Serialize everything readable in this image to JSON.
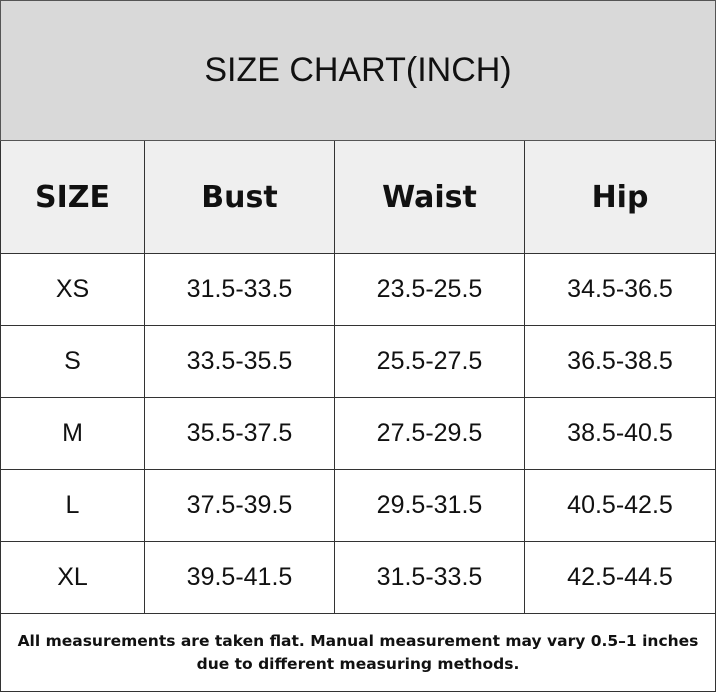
{
  "header": {
    "title": "SIZE CHART(INCH)"
  },
  "table": {
    "columns": [
      "SIZE",
      "Bust",
      "Waist",
      "Hip"
    ],
    "rows": [
      [
        "XS",
        "31.5-33.5",
        "23.5-25.5",
        "34.5-36.5"
      ],
      [
        "S",
        "33.5-35.5",
        "25.5-27.5",
        "36.5-38.5"
      ],
      [
        "M",
        "35.5-37.5",
        "27.5-29.5",
        "38.5-40.5"
      ],
      [
        "L",
        "37.5-39.5",
        "29.5-31.5",
        "40.5-42.5"
      ],
      [
        "XL",
        "39.5-41.5",
        "31.5-33.5",
        "42.5-44.5"
      ]
    ]
  },
  "footer": {
    "note": "All measurements are taken flat. Manual measurement may vary 0.5–1 inches due to different measuring methods."
  }
}
